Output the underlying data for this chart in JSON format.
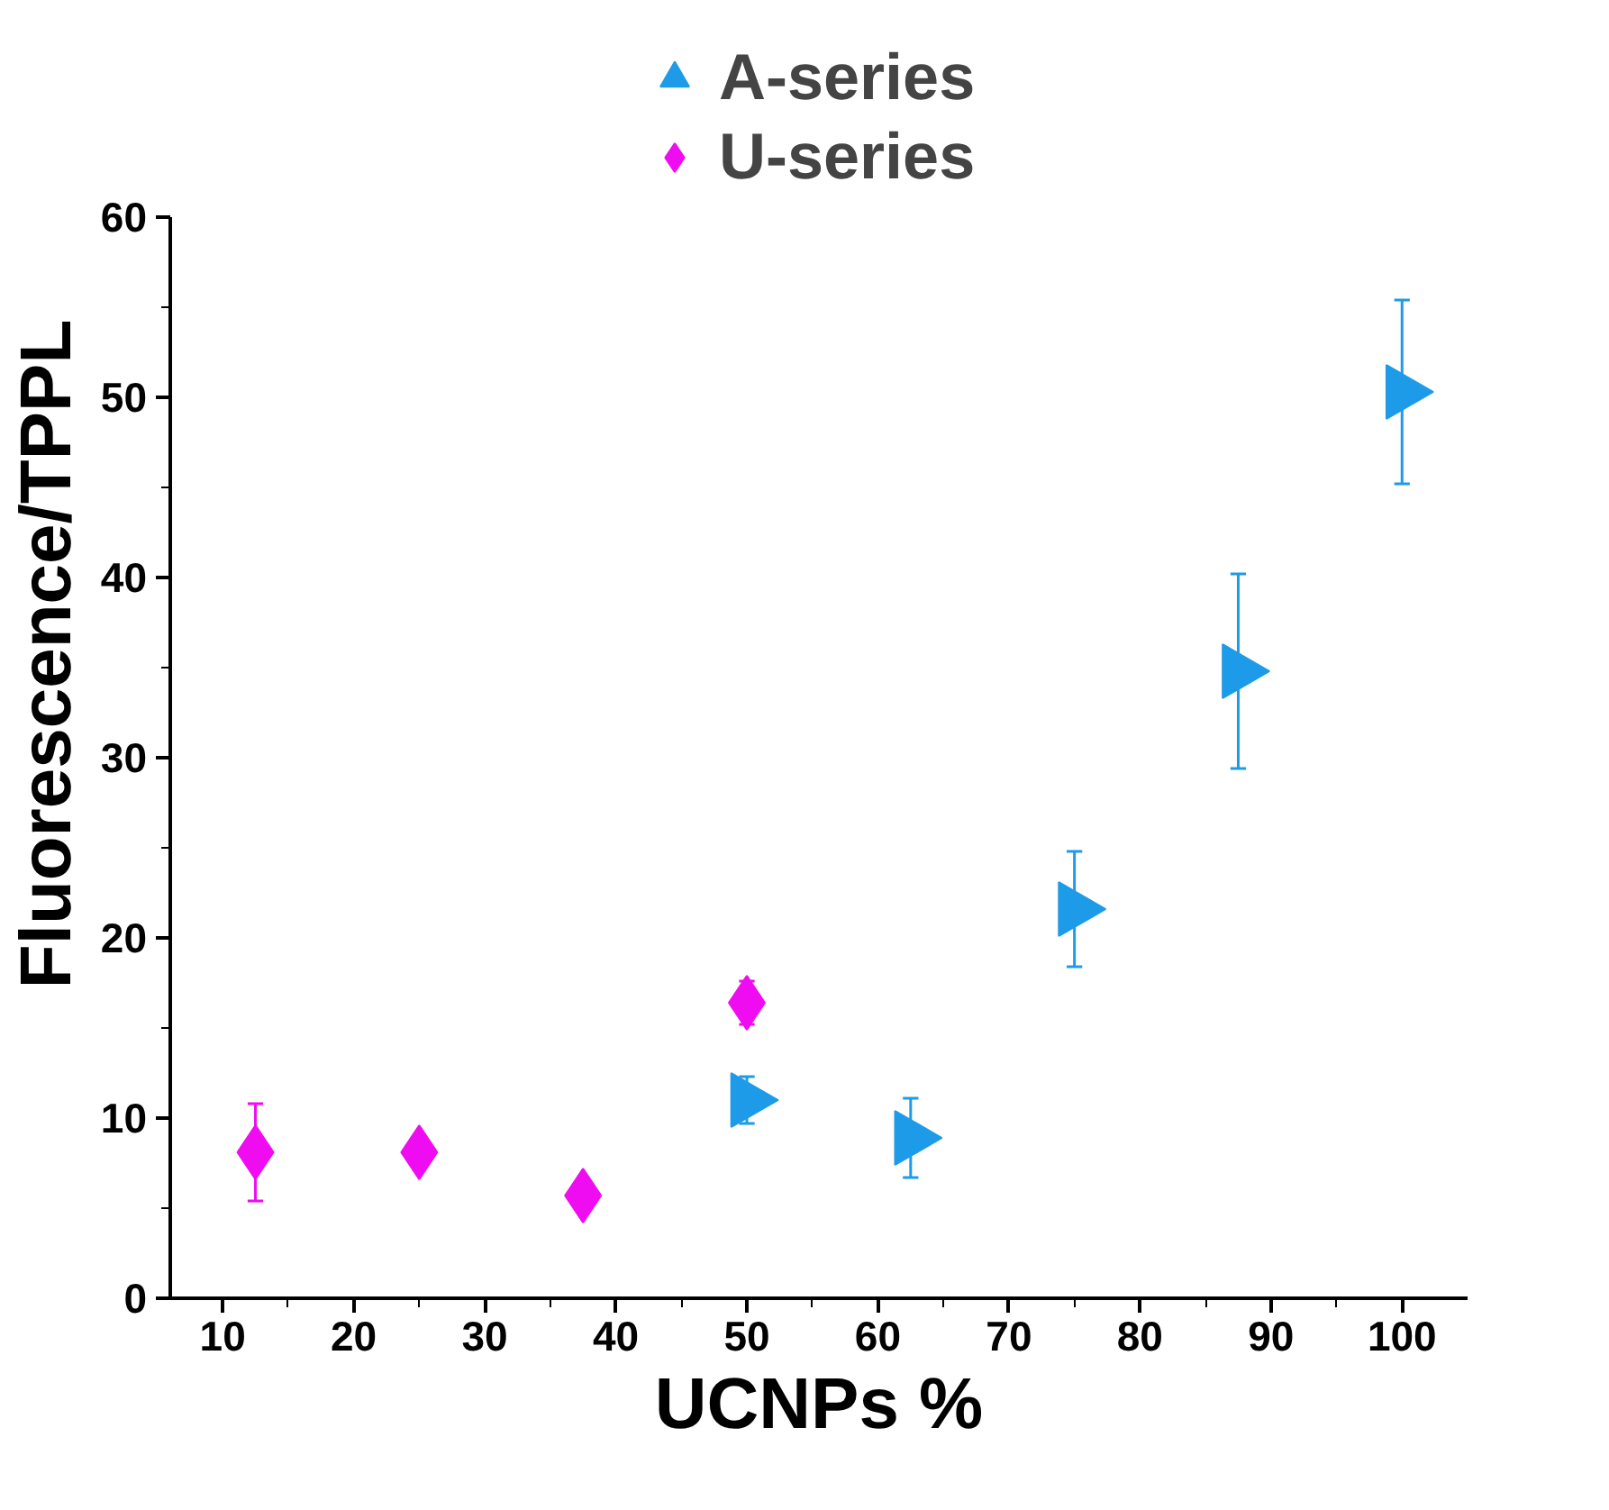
{
  "chart_data": {
    "type": "scatter",
    "xlabel": "UCNPs %",
    "ylabel": "Fluorescence/TPPL",
    "xlim": [
      6,
      105
    ],
    "ylim": [
      0,
      60
    ],
    "xticks": [
      10,
      20,
      30,
      40,
      50,
      60,
      70,
      80,
      90,
      100
    ],
    "yticks": [
      0,
      10,
      20,
      30,
      40,
      50,
      60
    ],
    "grid": false,
    "legend": "top",
    "series": [
      {
        "name": "A-series",
        "color": "#1e9be8",
        "marker": "triangle",
        "x": [
          50,
          62.5,
          75,
          87.5,
          100
        ],
        "values": [
          11,
          8.9,
          21.6,
          34.8,
          50.3
        ],
        "errors": [
          1.3,
          2.2,
          3.2,
          5.4,
          5.1
        ]
      },
      {
        "name": "U-series",
        "color": "#f00cf0",
        "marker": "diamond",
        "x": [
          12.5,
          25,
          37.5,
          50
        ],
        "values": [
          8.1,
          8.1,
          5.7,
          16.4
        ],
        "errors": [
          2.7,
          0.6,
          0.3,
          1.2
        ]
      }
    ]
  }
}
